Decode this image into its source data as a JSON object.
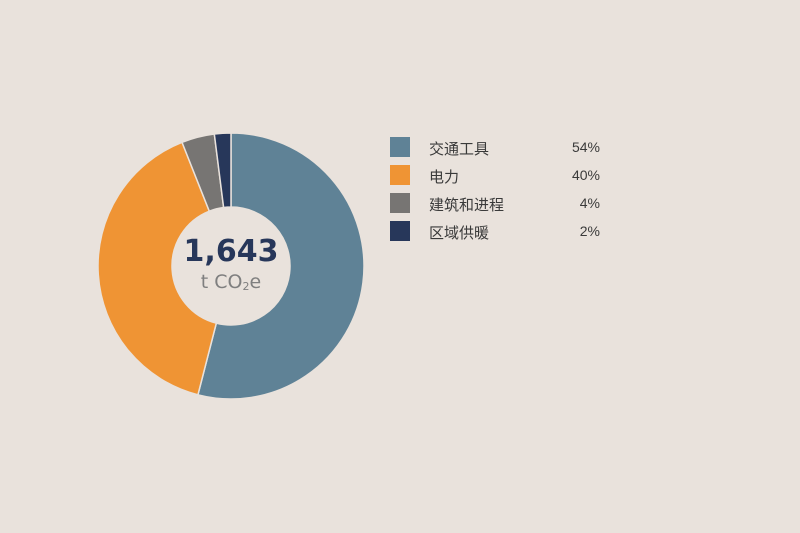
{
  "chart_data": {
    "type": "pie",
    "donut": true,
    "center_value": "1,643",
    "center_unit_prefix": "t CO",
    "center_unit_subscript": "2",
    "center_unit_suffix": "e",
    "slices": [
      {
        "label": "交通工具",
        "percent_label": "54%",
        "value": 54,
        "color": "#5f8296"
      },
      {
        "label": "电力",
        "percent_label": "40%",
        "value": 40,
        "color": "#ef9434"
      },
      {
        "label": "建筑和进程",
        "percent_label": "4%",
        "value": 4,
        "color": "#777573"
      },
      {
        "label": "区域供暖",
        "percent_label": "2%",
        "value": 2,
        "color": "#27375a"
      }
    ],
    "legend_placement": "right"
  },
  "colors": {
    "background": "#e9e2dc",
    "donut_hole": "#e9e2dc"
  }
}
